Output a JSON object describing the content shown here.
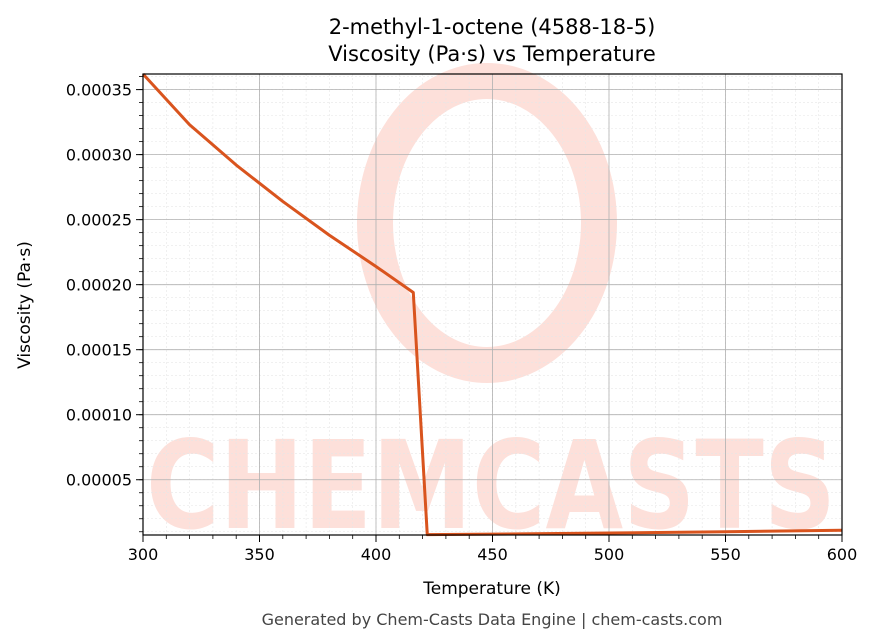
{
  "chart_data": {
    "type": "line",
    "title": "2-methyl-1-octene (4588-18-5)",
    "subtitle": "Viscosity (Pa·s) vs Temperature",
    "xlabel": "Temperature (K)",
    "ylabel": "Viscosity (Pa·s)",
    "xlim": [
      300,
      600
    ],
    "ylim": [
      7.5e-06,
      0.000362
    ],
    "x_ticks": [
      300,
      350,
      400,
      450,
      500,
      550,
      600
    ],
    "x_tick_labels": [
      "300",
      "350",
      "400",
      "450",
      "500",
      "550",
      "600"
    ],
    "y_ticks": [
      5e-05,
      0.0001,
      0.00015,
      0.0002,
      0.00025,
      0.0003,
      0.00035
    ],
    "y_tick_labels": [
      "0.00005",
      "0.00010",
      "0.00015",
      "0.00020",
      "0.00025",
      "0.00030",
      "0.00035"
    ],
    "grid": true,
    "series": [
      {
        "color": "#d9541e",
        "x": [
          300,
          320,
          340,
          360,
          380,
          400,
          416,
          422,
          450,
          500,
          550,
          600
        ],
        "y": [
          0.000362,
          0.000323,
          0.000292,
          0.000264,
          0.000238,
          0.000214,
          0.000194,
          7.8e-06,
          8.2e-06,
          9e-06,
          1e-05,
          1.12e-05
        ]
      }
    ]
  },
  "footer": "Generated by Chem-Casts Data Engine | chem-casts.com",
  "watermark": {
    "text": "CHEMCASTS",
    "color": "#fde0da"
  }
}
